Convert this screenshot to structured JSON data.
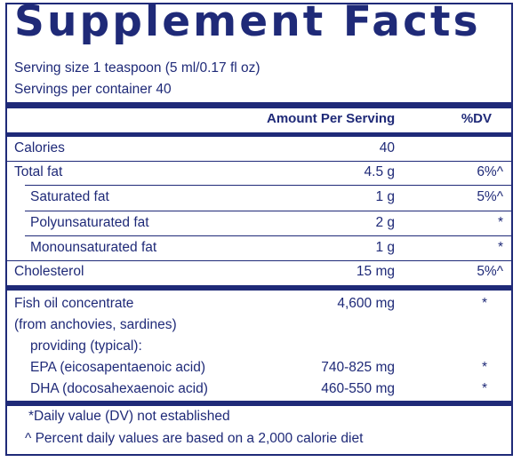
{
  "title": "Supplement Facts",
  "serving_size": "Serving size  1 teaspoon (5 ml/0.17 fl oz)",
  "servings_per_container": "Servings per container  40",
  "header": {
    "amount": "Amount Per Serving",
    "dv": "%DV"
  },
  "rows": [
    {
      "label": "Calories",
      "amount": "40",
      "dv": ""
    },
    {
      "label": "Total fat",
      "amount": "4.5 g",
      "dv": "6%^"
    },
    {
      "label": "Saturated fat",
      "amount": "1 g",
      "dv": "5%^"
    },
    {
      "label": "Polyunsaturated fat",
      "amount": "2 g",
      "dv": "*"
    },
    {
      "label": "Monounsaturated fat",
      "amount": "1 g",
      "dv": "*"
    },
    {
      "label": "Cholesterol",
      "amount": "15 mg",
      "dv": "5%^"
    }
  ],
  "fish": {
    "line1": "Fish oil concentrate",
    "line2": "(from anchovies, sardines)",
    "line3": "providing (typical):",
    "amount": "4,600 mg",
    "dv": "*",
    "epa_label": "EPA (eicosapentaenoic acid)",
    "epa_amount": "740-825 mg",
    "epa_dv": "*",
    "dha_label": "DHA (docosahexaenoic acid)",
    "dha_amount": "460-550 mg",
    "dha_dv": "*"
  },
  "footnotes": {
    "dv_not_established": "*Daily value (DV) not established",
    "percent_basis": "^ Percent daily values are based on a 2,000 calorie diet"
  }
}
